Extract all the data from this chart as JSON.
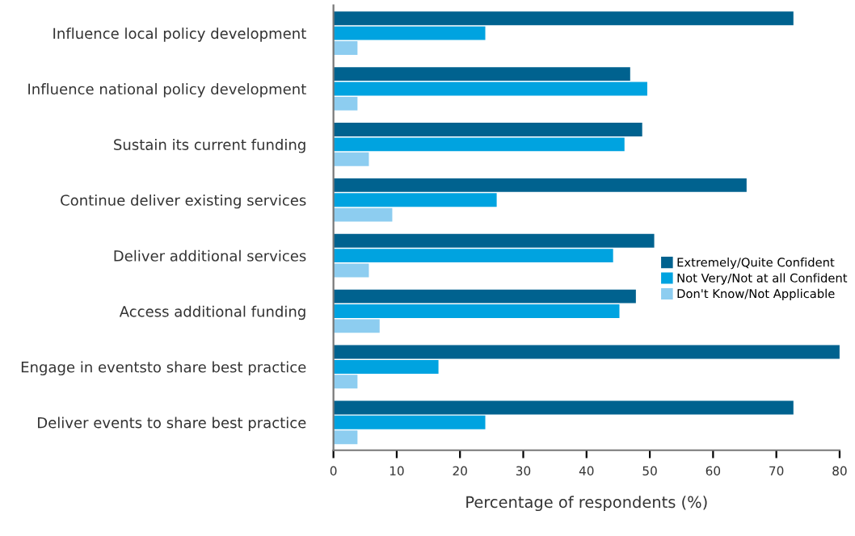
{
  "chart_data": {
    "type": "bar",
    "orientation": "horizontal",
    "xlabel": "Percentage of respondents (%)",
    "categories": [
      "Influence local policy development",
      "Influence national policy development",
      "Sustain its current funding",
      "Continue deliver existing services",
      "Deliver additional services",
      "Access additional funding",
      "Engage in eventsto share best practice",
      "Deliver events to share best practice"
    ],
    "series": [
      {
        "name": "Extremely/Quite Confident",
        "color": "#00628f",
        "values": [
          72.7,
          46.9,
          48.8,
          65.3,
          50.7,
          47.8,
          80,
          72.7
        ]
      },
      {
        "name": "Not Very/Not at all Confident",
        "color": "#00a3e0",
        "values": [
          24,
          49.6,
          46,
          25.8,
          44.2,
          45.2,
          16.6,
          24
        ]
      },
      {
        "name": "Don't Know/Not Applicable",
        "color": "#8dcdf0",
        "values": [
          3.8,
          3.8,
          5.6,
          9.3,
          5.6,
          7.3,
          3.8,
          3.8
        ]
      }
    ],
    "xlim": [
      0,
      80
    ],
    "xticks": [
      0,
      10,
      20,
      30,
      40,
      50,
      60,
      70,
      80
    ],
    "grid": false,
    "legend": "right"
  }
}
